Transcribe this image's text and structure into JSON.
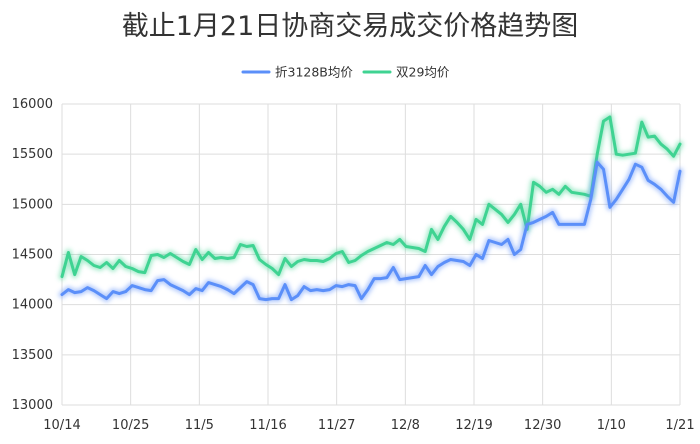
{
  "chart_data": {
    "type": "line",
    "title": "截止1月21日协商交易成交价格趋势图",
    "xlabel": "",
    "ylabel": "",
    "ylim": [
      13000,
      16000
    ],
    "yticks": [
      13000,
      13500,
      14000,
      14500,
      15000,
      15500,
      16000
    ],
    "grid": true,
    "legend_position": "top-center",
    "x_start_label": "10/14",
    "xtick_labels": [
      "10/14",
      "10/25",
      "11/5",
      "11/16",
      "11/27",
      "12/8",
      "12/19",
      "12/30",
      "1/10",
      "1/21"
    ],
    "series": [
      {
        "name": "折3128B均价",
        "color": "#5b8ff9",
        "values": [
          14100,
          14150,
          14120,
          14130,
          14170,
          14140,
          14100,
          14060,
          14130,
          14110,
          14130,
          14190,
          14170,
          14150,
          14140,
          14240,
          14250,
          14200,
          14170,
          14140,
          14100,
          14160,
          14140,
          14220,
          14200,
          14180,
          14150,
          14110,
          14170,
          14230,
          14200,
          14060,
          14050,
          14060,
          14060,
          14200,
          14050,
          14090,
          14180,
          14140,
          14150,
          14140,
          14150,
          14190,
          14180,
          14200,
          14190,
          14060,
          14150,
          14260,
          14260,
          14270,
          14370,
          14250,
          14260,
          14270,
          14280,
          14390,
          14300,
          14380,
          14420,
          14450,
          14440,
          14430,
          14390,
          14500,
          14460,
          14640,
          14620,
          14600,
          14650,
          14500,
          14550,
          14800,
          14820,
          14850,
          14880,
          14920,
          14800,
          14800,
          14800,
          14800,
          14800,
          15050,
          15420,
          15350,
          14970,
          15050,
          15150,
          15250,
          15400,
          15370,
          15240,
          15200,
          15150,
          15080,
          15020,
          15330
        ]
      },
      {
        "name": "双29均价",
        "color": "#3fd392",
        "values": [
          14280,
          14520,
          14300,
          14480,
          14440,
          14390,
          14370,
          14420,
          14360,
          14440,
          14380,
          14360,
          14330,
          14320,
          14490,
          14500,
          14470,
          14510,
          14470,
          14430,
          14400,
          14550,
          14450,
          14520,
          14460,
          14470,
          14460,
          14470,
          14600,
          14580,
          14590,
          14450,
          14400,
          14360,
          14300,
          14460,
          14380,
          14430,
          14450,
          14440,
          14440,
          14430,
          14460,
          14510,
          14530,
          14420,
          14440,
          14490,
          14530,
          14560,
          14590,
          14620,
          14600,
          14650,
          14580,
          14570,
          14560,
          14530,
          14750,
          14650,
          14780,
          14880,
          14820,
          14750,
          14650,
          14850,
          14800,
          15000,
          14950,
          14900,
          14820,
          14900,
          15000,
          14750,
          15220,
          15180,
          15120,
          15150,
          15100,
          15180,
          15120,
          15110,
          15100,
          15080,
          15500,
          15830,
          15870,
          15500,
          15490,
          15500,
          15510,
          15820,
          15670,
          15680,
          15600,
          15550,
          15480,
          15600
        ]
      }
    ]
  }
}
